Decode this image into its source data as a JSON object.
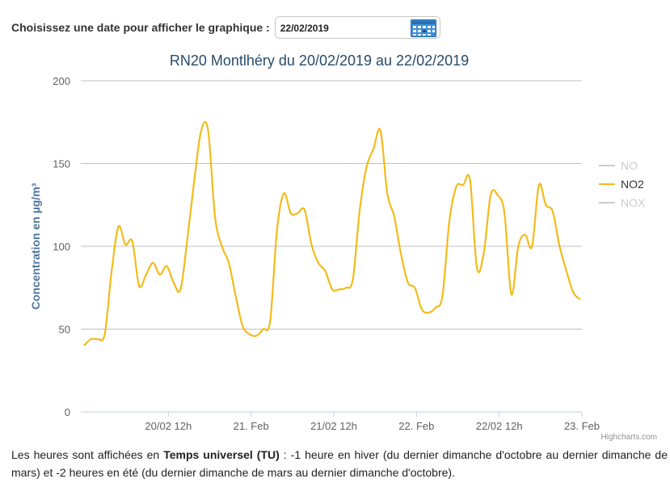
{
  "picker": {
    "label": "Choisissez une date pour afficher le graphique :",
    "value": "22/02/2019",
    "calendar_icon": "calendar-icon"
  },
  "chart_data": {
    "type": "line",
    "title": "RN20 Montlhéry du 20/02/2019 au 22/02/2019",
    "ylabel": "Concentration en µg/m³",
    "xlabel": "",
    "ylim": [
      0,
      200
    ],
    "yticks": [
      0,
      50,
      100,
      150,
      200
    ],
    "xticks": [
      "20/02 12h",
      "21. Feb",
      "21/02 12h",
      "22. Feb",
      "22/02 12h",
      "23. Feb"
    ],
    "grid": true,
    "legend_position": "right",
    "legend": [
      {
        "name": "NO",
        "color": "#cccccc"
      },
      {
        "name": "NO2",
        "color": "#333333"
      },
      {
        "name": "NOX",
        "color": "#cccccc"
      }
    ],
    "series": [
      {
        "name": "NO2",
        "color": "#f3bb1b",
        "values": [
          40,
          44,
          44,
          47,
          85,
          112,
          101,
          103,
          76,
          83,
          90,
          83,
          88,
          78,
          74,
          105,
          140,
          170,
          170,
          118,
          100,
          90,
          70,
          52,
          47,
          46,
          50,
          55,
          110,
          132,
          120,
          120,
          122,
          101,
          90,
          85,
          74,
          74,
          75,
          80,
          122,
          148,
          159,
          170,
          132,
          118,
          95,
          78,
          75,
          62,
          60,
          63,
          70,
          115,
          136,
          137,
          140,
          87,
          96,
          131,
          131,
          120,
          71,
          100,
          107,
          100,
          137,
          125,
          121,
          100,
          85,
          72,
          68
        ]
      }
    ],
    "credits": "Highcharts.com"
  },
  "footnote": {
    "part1": "Les heures sont affichées en ",
    "bold": "Temps universel (TU)",
    "part2": " : -1 heure en hiver (du dernier dimanche d'octobre au dernier dimanche de mars) et -2 heures en été (du dernier dimanche de mars au dernier dimanche d'octobre)."
  }
}
